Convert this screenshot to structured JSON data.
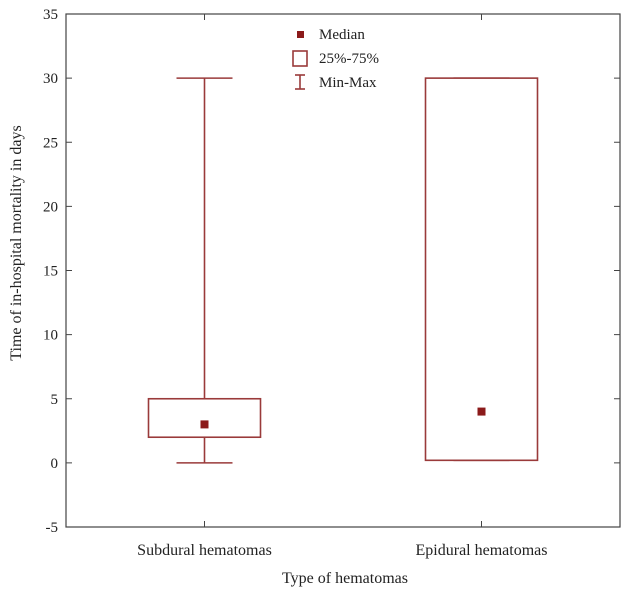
{
  "chart_data": {
    "type": "box",
    "xlabel": "Type of hematomas",
    "ylabel": "Time of in-hospital mortality in days",
    "ylim": [
      -5,
      35
    ],
    "yticks": [
      -5,
      0,
      5,
      10,
      15,
      20,
      25,
      30,
      35
    ],
    "categories": [
      "Subdural hematomas",
      "Epidural hematomas"
    ],
    "boxes": [
      {
        "category": "Subdural hematomas",
        "min": 0,
        "q1": 2,
        "median": 3,
        "q3": 5,
        "max": 30
      },
      {
        "category": "Epidural hematomas",
        "min": 0.2,
        "q1": 0.2,
        "median": 4,
        "q3": 30,
        "max": 30
      }
    ],
    "legend": {
      "position": "top-center",
      "items": [
        {
          "label": "Median",
          "symbol": "square-filled"
        },
        {
          "label": "25%-75%",
          "symbol": "box"
        },
        {
          "label": "Min-Max",
          "symbol": "whisker"
        }
      ]
    },
    "colors": {
      "box": "#9a3a3a",
      "median": "#8b1a1a",
      "axis": "#444444"
    },
    "grid": false
  }
}
